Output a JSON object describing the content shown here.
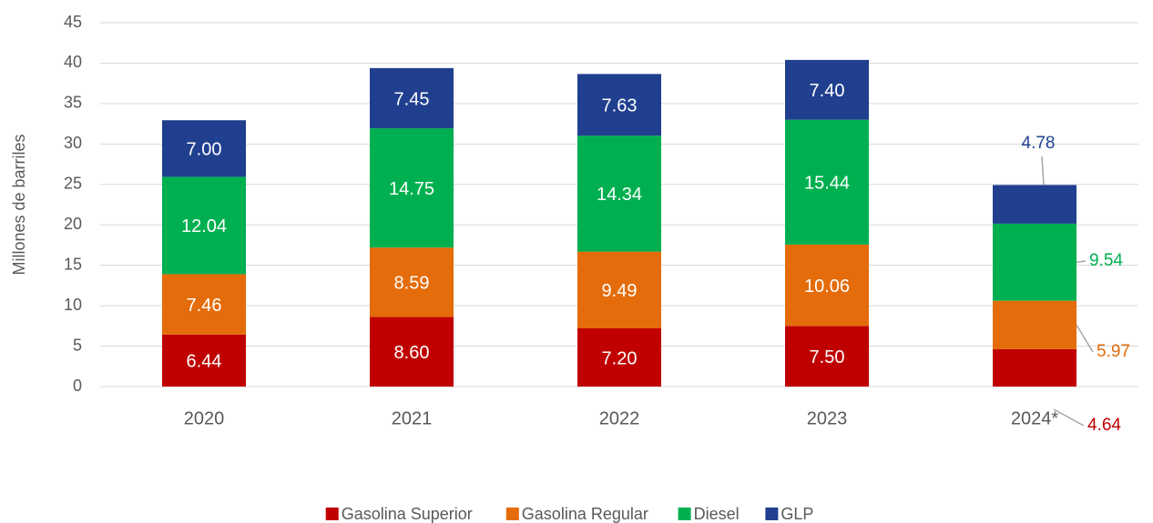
{
  "chart_data": {
    "type": "stacked_bar",
    "y_label": "Millones de barriles",
    "categories": [
      "2020",
      "2021",
      "2022",
      "2023",
      "2024*"
    ],
    "series": [
      {
        "name": "Gasolina Superior",
        "color": "#c00000",
        "values": [
          6.44,
          8.6,
          7.2,
          7.5,
          4.64
        ],
        "value_labels": [
          "6.44",
          "8.60",
          "7.20",
          "7.50",
          "4.64"
        ]
      },
      {
        "name": "Gasolina Regular",
        "color": "#e46c0a",
        "values": [
          7.46,
          8.59,
          9.49,
          10.06,
          5.97
        ],
        "value_labels": [
          "7.46",
          "8.59",
          "9.49",
          "10.06",
          "5.97"
        ]
      },
      {
        "name": "Diesel",
        "color": "#00b050",
        "values": [
          12.04,
          14.75,
          14.34,
          15.44,
          9.54
        ],
        "value_labels": [
          "12.04",
          "14.75",
          "14.34",
          "15.44",
          "9.54"
        ]
      },
      {
        "name": "GLP",
        "color": "#203f8f",
        "values": [
          7.0,
          7.45,
          7.63,
          7.4,
          4.78
        ],
        "value_labels": [
          "7.00",
          "7.45",
          "7.63",
          "7.40",
          "4.78"
        ]
      }
    ],
    "ylim": [
      0,
      45
    ],
    "yticks": [
      0,
      5,
      10,
      15,
      20,
      25,
      30,
      35,
      40,
      45
    ],
    "grid": true,
    "legend": "bottom"
  }
}
